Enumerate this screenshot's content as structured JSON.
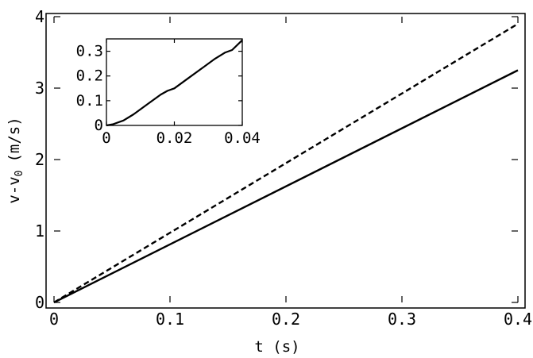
{
  "chart_data": [
    {
      "type": "line",
      "title": "",
      "xlabel": "t (s)",
      "ylabel_main": "v-v",
      "ylabel_sub": "0",
      "ylabel_units": "(m/s)",
      "xlim": [
        0,
        0.4
      ],
      "ylim": [
        0,
        4
      ],
      "xticks": [
        0,
        0.1,
        0.2,
        0.3,
        0.4
      ],
      "xtick_labels": [
        "0",
        "0.1",
        "0.2",
        "0.3",
        "0.4"
      ],
      "yticks": [
        0,
        1,
        2,
        3,
        4
      ],
      "ytick_labels": [
        "0",
        "1",
        "2",
        "3",
        "4"
      ],
      "grid": false,
      "series": [
        {
          "style": "dashed",
          "color": "#000000",
          "x": [
            0,
            0.4
          ],
          "y": [
            0,
            3.9
          ]
        },
        {
          "style": "solid",
          "color": "#000000",
          "x": [
            0,
            0.4
          ],
          "y": [
            0,
            3.25
          ]
        }
      ]
    },
    {
      "type": "line",
      "title": "",
      "xlabel": "",
      "ylabel": "",
      "xlim": [
        0,
        0.04
      ],
      "ylim": [
        0,
        0.35
      ],
      "xticks": [
        0,
        0.02,
        0.04
      ],
      "xtick_labels": [
        "0",
        "0.02",
        "0.04"
      ],
      "yticks": [
        0,
        0.1,
        0.2,
        0.3
      ],
      "ytick_labels": [
        "0",
        "0.1",
        "0.2",
        "0.3"
      ],
      "grid": false,
      "series": [
        {
          "style": "solid",
          "color": "#000000",
          "x": [
            0,
            0.002,
            0.005,
            0.008,
            0.012,
            0.016,
            0.018,
            0.02,
            0.024,
            0.028,
            0.032,
            0.035,
            0.037,
            0.04
          ],
          "y": [
            0,
            0.005,
            0.02,
            0.045,
            0.085,
            0.125,
            0.14,
            0.15,
            0.19,
            0.23,
            0.27,
            0.295,
            0.305,
            0.345
          ]
        }
      ]
    }
  ]
}
